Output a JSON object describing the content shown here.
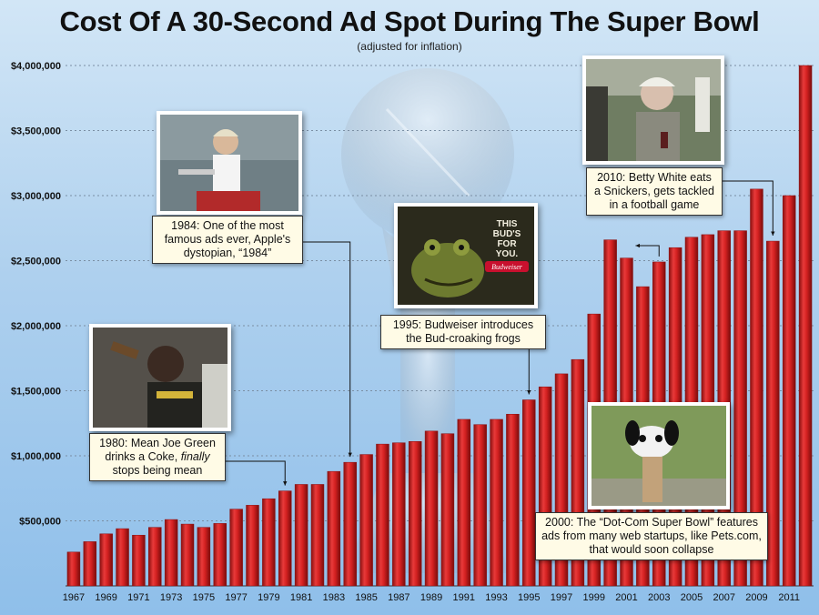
{
  "header": {
    "title": "Cost Of A 30-Second Ad Spot During The Super Bowl",
    "subtitle": "(adjusted for inflation)"
  },
  "colors": {
    "bar": "#d42121",
    "bar_dark": "#8a0f0f",
    "grid": "#7a8ea3"
  },
  "chart_data": {
    "type": "bar",
    "title": "Cost Of A 30-Second Ad Spot During The Super Bowl",
    "subtitle": "(adjusted for inflation)",
    "xlabel": "",
    "ylabel": "",
    "ylim": [
      0,
      4000000
    ],
    "grid": true,
    "y_ticks": [
      500000,
      1000000,
      1500000,
      2000000,
      2500000,
      3000000,
      3500000,
      4000000
    ],
    "y_tick_labels": [
      "$500,000",
      "$1,000,000",
      "$1,500,000",
      "$2,000,000",
      "$2,500,000",
      "$3,000,000",
      "$3,500,000",
      "$4,000,000"
    ],
    "x_tick_labels": [
      "1967",
      "1969",
      "1971",
      "1973",
      "1975",
      "1977",
      "1979",
      "1981",
      "1983",
      "1985",
      "1987",
      "1989",
      "1991",
      "1993",
      "1995",
      "1997",
      "1999",
      "2001",
      "2003",
      "2005",
      "2007",
      "2009",
      "2011"
    ],
    "categories": [
      "1967",
      "1968",
      "1969",
      "1970",
      "1971",
      "1972",
      "1973",
      "1974",
      "1975",
      "1976",
      "1977",
      "1978",
      "1979",
      "1980",
      "1981",
      "1982",
      "1983",
      "1984",
      "1985",
      "1986",
      "1987",
      "1988",
      "1989",
      "1990",
      "1991",
      "1992",
      "1993",
      "1994",
      "1995",
      "1996",
      "1997",
      "1998",
      "1999",
      "2000",
      "2001",
      "2002",
      "2003",
      "2004",
      "2005",
      "2006",
      "2007",
      "2008",
      "2009",
      "2010",
      "2011",
      "2012"
    ],
    "values": [
      260000,
      340000,
      400000,
      440000,
      390000,
      450000,
      510000,
      475000,
      450000,
      480000,
      590000,
      620000,
      670000,
      730000,
      780000,
      780000,
      880000,
      950000,
      1010000,
      1090000,
      1100000,
      1110000,
      1190000,
      1170000,
      1280000,
      1240000,
      1280000,
      1320000,
      1430000,
      1530000,
      1630000,
      1740000,
      2090000,
      2660000,
      2520000,
      2300000,
      2490000,
      2600000,
      2680000,
      2700000,
      2730000,
      2730000,
      3050000,
      2650000,
      3000000,
      4000000
    ]
  },
  "annotations": [
    {
      "id": "joe-green",
      "year": "1980",
      "text_before": "1980: Mean Joe Green drinks a Coke, ",
      "text_emph": "finally",
      "text_after": " stops being mean"
    },
    {
      "id": "apple-1984",
      "year": "1984",
      "text": "1984: One of the most famous ads ever, Apple's dystopian, “1984”"
    },
    {
      "id": "bud-frogs",
      "year": "1995",
      "text": "1995: Budweiser introduces the Bud-croaking frogs"
    },
    {
      "id": "dot-com",
      "year": "2000",
      "text": "2000: The “Dot-Com Super Bowl” features ads from many web startups, like Pets.com, that would soon collapse"
    },
    {
      "id": "betty-white",
      "year": "2010",
      "text": "2010: Betty White eats a Snickers, gets tackled in a football game"
    }
  ],
  "frog_sign": {
    "line1": "THIS",
    "line2": "BUD'S",
    "line3": "FOR",
    "line4": "YOU.",
    "brand": "Budweiser"
  }
}
